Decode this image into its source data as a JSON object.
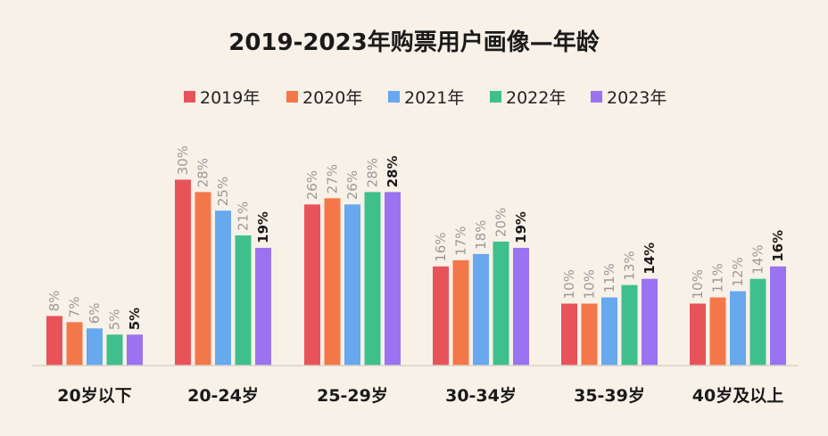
{
  "chart_data": {
    "type": "bar",
    "title": "2019-2023年购票用户画像—年龄",
    "categories": [
      "20岁以下",
      "20-24岁",
      "25-29岁",
      "30-34岁",
      "35-39岁",
      "40岁及以上"
    ],
    "series": [
      {
        "name": "2019年",
        "color": "#e8535a",
        "values": [
          8,
          30,
          26,
          16,
          10,
          10
        ]
      },
      {
        "name": "2020年",
        "color": "#f4774a",
        "values": [
          7,
          28,
          27,
          17,
          10,
          11
        ]
      },
      {
        "name": "2021年",
        "color": "#67a8ef",
        "values": [
          6,
          25,
          26,
          18,
          11,
          12
        ]
      },
      {
        "name": "2022年",
        "color": "#3fbf8c",
        "values": [
          5,
          21,
          28,
          20,
          13,
          14
        ]
      },
      {
        "name": "2023年",
        "color": "#9b72f0",
        "values": [
          5,
          19,
          28,
          19,
          14,
          16
        ]
      }
    ],
    "value_suffix": "%",
    "ylim": [
      0,
      30
    ],
    "grid": false,
    "legend_position": "top-center",
    "xlabel": "",
    "ylabel": ""
  }
}
